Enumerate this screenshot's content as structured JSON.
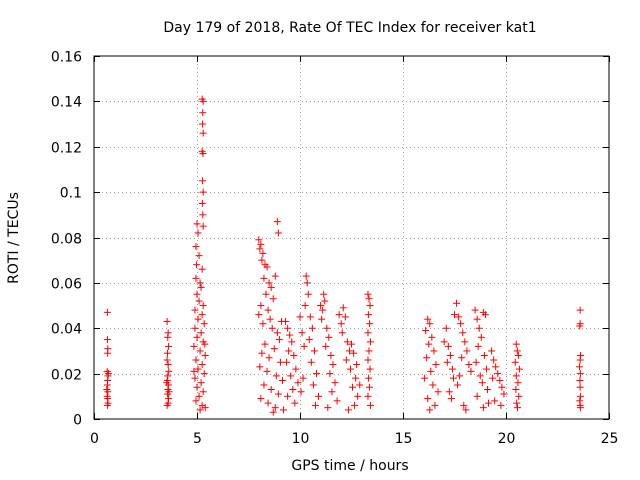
{
  "chart_data": {
    "type": "scatter",
    "title": "Day 179 of 2018, Rate Of TEC Index for receiver kat1",
    "xlabel": "GPS time / hours",
    "ylabel": "ROTI / TECUs",
    "xlim": [
      0,
      25
    ],
    "ylim": [
      0,
      0.16
    ],
    "xticks": [
      0,
      5,
      10,
      15,
      20,
      25
    ],
    "xtick_labels": [
      "0",
      "5",
      "10",
      "15",
      "20",
      "25"
    ],
    "yticks": [
      0,
      0.02,
      0.04,
      0.06,
      0.08,
      0.1,
      0.12,
      0.14,
      0.16
    ],
    "ytick_labels": [
      "0",
      "0.02",
      "0.04",
      "0.06",
      "0.08",
      "0.1",
      "0.12",
      "0.14",
      "0.16"
    ],
    "grid": true,
    "marker": "+",
    "color": "#ff0000",
    "series": [
      {
        "name": "ROTI",
        "points": [
          [
            0.65,
            0.047
          ],
          [
            0.65,
            0.035
          ],
          [
            0.67,
            0.031
          ],
          [
            0.66,
            0.029
          ],
          [
            0.64,
            0.021
          ],
          [
            0.68,
            0.019
          ],
          [
            0.66,
            0.017
          ],
          [
            0.65,
            0.015
          ],
          [
            0.67,
            0.012
          ],
          [
            0.64,
            0.01
          ],
          [
            0.66,
            0.009
          ],
          [
            0.68,
            0.007
          ],
          [
            0.65,
            0.006
          ],
          [
            0.7,
            0.02
          ],
          [
            0.62,
            0.013
          ],
          [
            3.55,
            0.043
          ],
          [
            3.6,
            0.038
          ],
          [
            3.58,
            0.036
          ],
          [
            3.62,
            0.032
          ],
          [
            3.57,
            0.029
          ],
          [
            3.55,
            0.026
          ],
          [
            3.6,
            0.024
          ],
          [
            3.63,
            0.021
          ],
          [
            3.58,
            0.019
          ],
          [
            3.56,
            0.017
          ],
          [
            3.61,
            0.015
          ],
          [
            3.59,
            0.013
          ],
          [
            3.57,
            0.011
          ],
          [
            3.62,
            0.009
          ],
          [
            3.6,
            0.007
          ],
          [
            3.55,
            0.006
          ],
          [
            3.64,
            0.012
          ],
          [
            3.53,
            0.016
          ],
          [
            5.25,
            0.141
          ],
          [
            5.3,
            0.14
          ],
          [
            5.28,
            0.135
          ],
          [
            5.27,
            0.13
          ],
          [
            5.3,
            0.126
          ],
          [
            5.25,
            0.118
          ],
          [
            5.29,
            0.117
          ],
          [
            5.27,
            0.105
          ],
          [
            5.3,
            0.1
          ],
          [
            5.26,
            0.095
          ],
          [
            5.28,
            0.09
          ],
          [
            5.3,
            0.085
          ],
          [
            5.0,
            0.086
          ],
          [
            5.05,
            0.082
          ],
          [
            4.95,
            0.076
          ],
          [
            5.1,
            0.072
          ],
          [
            4.98,
            0.068
          ],
          [
            5.25,
            0.066
          ],
          [
            4.95,
            0.062
          ],
          [
            5.15,
            0.06
          ],
          [
            5.2,
            0.058
          ],
          [
            5.0,
            0.055
          ],
          [
            5.1,
            0.052
          ],
          [
            5.3,
            0.05
          ],
          [
            4.9,
            0.048
          ],
          [
            5.25,
            0.046
          ],
          [
            5.05,
            0.044
          ],
          [
            5.35,
            0.042
          ],
          [
            4.9,
            0.04
          ],
          [
            5.2,
            0.038
          ],
          [
            5.0,
            0.036
          ],
          [
            5.3,
            0.034
          ],
          [
            4.85,
            0.032
          ],
          [
            5.15,
            0.03
          ],
          [
            5.4,
            0.028
          ],
          [
            4.95,
            0.026
          ],
          [
            5.25,
            0.024
          ],
          [
            5.05,
            0.022
          ],
          [
            5.35,
            0.02
          ],
          [
            4.9,
            0.018
          ],
          [
            5.2,
            0.016
          ],
          [
            5.0,
            0.014
          ],
          [
            5.3,
            0.012
          ],
          [
            5.1,
            0.01
          ],
          [
            4.95,
            0.008
          ],
          [
            5.25,
            0.006
          ],
          [
            5.15,
            0.004
          ],
          [
            5.4,
            0.005
          ],
          [
            4.85,
            0.021
          ],
          [
            5.38,
            0.033
          ],
          [
            8.0,
            0.079
          ],
          [
            8.1,
            0.077
          ],
          [
            8.05,
            0.075
          ],
          [
            8.2,
            0.073
          ],
          [
            8.15,
            0.07
          ],
          [
            8.3,
            0.068
          ],
          [
            8.4,
            0.067
          ],
          [
            8.25,
            0.062
          ],
          [
            8.5,
            0.06
          ],
          [
            8.8,
            0.063
          ],
          [
            8.9,
            0.087
          ],
          [
            8.95,
            0.082
          ],
          [
            8.6,
            0.058
          ],
          [
            8.35,
            0.055
          ],
          [
            8.7,
            0.053
          ],
          [
            8.1,
            0.05
          ],
          [
            8.45,
            0.048
          ],
          [
            8.0,
            0.046
          ],
          [
            8.55,
            0.044
          ],
          [
            8.2,
            0.042
          ],
          [
            8.65,
            0.04
          ],
          [
            8.9,
            0.038
          ],
          [
            9.0,
            0.035
          ],
          [
            9.1,
            0.043
          ],
          [
            8.3,
            0.033
          ],
          [
            8.75,
            0.031
          ],
          [
            8.15,
            0.029
          ],
          [
            8.5,
            0.027
          ],
          [
            9.05,
            0.025
          ],
          [
            8.05,
            0.023
          ],
          [
            8.4,
            0.021
          ],
          [
            8.85,
            0.019
          ],
          [
            9.15,
            0.017
          ],
          [
            8.25,
            0.015
          ],
          [
            8.6,
            0.013
          ],
          [
            8.95,
            0.011
          ],
          [
            8.1,
            0.009
          ],
          [
            8.45,
            0.007
          ],
          [
            8.8,
            0.005
          ],
          [
            9.2,
            0.004
          ],
          [
            8.7,
            0.003
          ],
          [
            9.3,
            0.043
          ],
          [
            9.4,
            0.04
          ],
          [
            9.5,
            0.037
          ],
          [
            9.6,
            0.034
          ],
          [
            9.45,
            0.03
          ],
          [
            9.7,
            0.028
          ],
          [
            9.35,
            0.025
          ],
          [
            9.8,
            0.022
          ],
          [
            9.55,
            0.019
          ],
          [
            9.9,
            0.016
          ],
          [
            9.65,
            0.013
          ],
          [
            9.4,
            0.01
          ],
          [
            9.75,
            0.007
          ],
          [
            10.0,
            0.045
          ],
          [
            10.1,
            0.038
          ],
          [
            10.2,
            0.032
          ],
          [
            10.3,
            0.063
          ],
          [
            10.35,
            0.06
          ],
          [
            10.4,
            0.055
          ],
          [
            10.25,
            0.05
          ],
          [
            10.5,
            0.045
          ],
          [
            10.6,
            0.04
          ],
          [
            10.45,
            0.035
          ],
          [
            10.7,
            0.03
          ],
          [
            10.55,
            0.025
          ],
          [
            10.8,
            0.02
          ],
          [
            10.65,
            0.015
          ],
          [
            10.9,
            0.01
          ],
          [
            10.75,
            0.006
          ],
          [
            10.15,
            0.018
          ],
          [
            10.05,
            0.012
          ],
          [
            11.0,
            0.05
          ],
          [
            11.1,
            0.048
          ],
          [
            11.15,
            0.055
          ],
          [
            11.2,
            0.052
          ],
          [
            11.05,
            0.044
          ],
          [
            11.3,
            0.04
          ],
          [
            11.4,
            0.036
          ],
          [
            11.25,
            0.032
          ],
          [
            11.5,
            0.028
          ],
          [
            11.6,
            0.024
          ],
          [
            11.45,
            0.02
          ],
          [
            11.7,
            0.016
          ],
          [
            11.55,
            0.012
          ],
          [
            11.8,
            0.008
          ],
          [
            11.35,
            0.005
          ],
          [
            11.9,
            0.046
          ],
          [
            12.0,
            0.042
          ],
          [
            12.1,
            0.049
          ],
          [
            12.2,
            0.045
          ],
          [
            12.05,
            0.038
          ],
          [
            12.3,
            0.034
          ],
          [
            12.4,
            0.03
          ],
          [
            12.25,
            0.026
          ],
          [
            12.5,
            0.033
          ],
          [
            12.6,
            0.029
          ],
          [
            12.45,
            0.022
          ],
          [
            12.7,
            0.018
          ],
          [
            12.55,
            0.014
          ],
          [
            12.8,
            0.01
          ],
          [
            12.65,
            0.006
          ],
          [
            12.9,
            0.015
          ],
          [
            12.35,
            0.004
          ],
          [
            12.75,
            0.024
          ],
          [
            13.3,
            0.055
          ],
          [
            13.35,
            0.053
          ],
          [
            13.4,
            0.05
          ],
          [
            13.32,
            0.046
          ],
          [
            13.38,
            0.042
          ],
          [
            13.3,
            0.038
          ],
          [
            13.42,
            0.034
          ],
          [
            13.35,
            0.03
          ],
          [
            13.3,
            0.026
          ],
          [
            13.4,
            0.022
          ],
          [
            13.33,
            0.018
          ],
          [
            13.37,
            0.014
          ],
          [
            13.3,
            0.01
          ],
          [
            13.42,
            0.006
          ],
          [
            16.2,
            0.044
          ],
          [
            16.3,
            0.042
          ],
          [
            16.1,
            0.039
          ],
          [
            16.4,
            0.036
          ],
          [
            16.25,
            0.033
          ],
          [
            16.5,
            0.03
          ],
          [
            16.15,
            0.027
          ],
          [
            16.6,
            0.024
          ],
          [
            16.35,
            0.021
          ],
          [
            16.05,
            0.018
          ],
          [
            16.45,
            0.015
          ],
          [
            16.7,
            0.012
          ],
          [
            16.2,
            0.009
          ],
          [
            16.55,
            0.006
          ],
          [
            16.3,
            0.004
          ],
          [
            17.0,
            0.034
          ],
          [
            17.1,
            0.04
          ],
          [
            17.2,
            0.032
          ],
          [
            17.3,
            0.028
          ],
          [
            17.15,
            0.025
          ],
          [
            17.4,
            0.022
          ],
          [
            17.5,
            0.046
          ],
          [
            17.6,
            0.051
          ],
          [
            17.7,
            0.045
          ],
          [
            17.8,
            0.042
          ],
          [
            17.45,
            0.018
          ],
          [
            17.9,
            0.038
          ],
          [
            18.0,
            0.034
          ],
          [
            17.65,
            0.015
          ],
          [
            18.1,
            0.03
          ],
          [
            17.25,
            0.012
          ],
          [
            17.85,
            0.027
          ],
          [
            18.2,
            0.024
          ],
          [
            17.35,
            0.009
          ],
          [
            18.3,
            0.021
          ],
          [
            17.95,
            0.006
          ],
          [
            17.75,
            0.019
          ],
          [
            18.05,
            0.004
          ],
          [
            18.5,
            0.048
          ],
          [
            18.6,
            0.044
          ],
          [
            18.7,
            0.04
          ],
          [
            18.8,
            0.036
          ],
          [
            18.9,
            0.047
          ],
          [
            19.0,
            0.046
          ],
          [
            18.65,
            0.032
          ],
          [
            18.95,
            0.028
          ],
          [
            18.55,
            0.025
          ],
          [
            19.05,
            0.022
          ],
          [
            18.75,
            0.019
          ],
          [
            18.85,
            0.016
          ],
          [
            19.1,
            0.013
          ],
          [
            18.6,
            0.01
          ],
          [
            19.15,
            0.007
          ],
          [
            18.9,
            0.005
          ],
          [
            19.3,
            0.03
          ],
          [
            19.4,
            0.026
          ],
          [
            19.5,
            0.023
          ],
          [
            19.6,
            0.02
          ],
          [
            19.7,
            0.017
          ],
          [
            19.8,
            0.014
          ],
          [
            19.9,
            0.011
          ],
          [
            19.45,
            0.008
          ],
          [
            19.75,
            0.006
          ],
          [
            19.35,
            0.018
          ],
          [
            20.5,
            0.033
          ],
          [
            20.55,
            0.03
          ],
          [
            20.6,
            0.028
          ],
          [
            20.45,
            0.025
          ],
          [
            20.65,
            0.022
          ],
          [
            20.5,
            0.019
          ],
          [
            20.58,
            0.016
          ],
          [
            20.48,
            0.013
          ],
          [
            20.62,
            0.01
          ],
          [
            20.52,
            0.007
          ],
          [
            20.56,
            0.005
          ],
          [
            23.6,
            0.048
          ],
          [
            23.6,
            0.042
          ],
          [
            23.58,
            0.041
          ],
          [
            23.62,
            0.028
          ],
          [
            23.6,
            0.026
          ],
          [
            23.57,
            0.023
          ],
          [
            23.61,
            0.02
          ],
          [
            23.59,
            0.017
          ],
          [
            23.6,
            0.014
          ],
          [
            23.62,
            0.01
          ],
          [
            23.58,
            0.008
          ],
          [
            23.6,
            0.006
          ],
          [
            23.61,
            0.005
          ]
        ]
      }
    ]
  }
}
